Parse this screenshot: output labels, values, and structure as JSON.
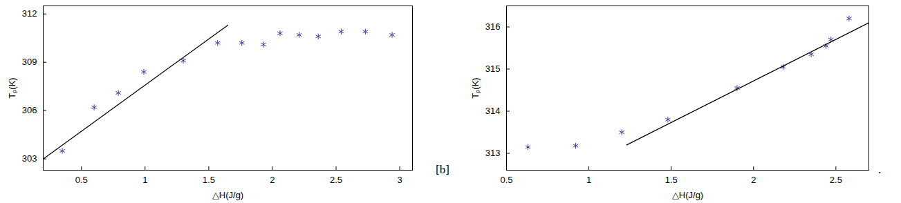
{
  "chart_data": [
    {
      "type": "scatter",
      "xlabel": "△H(J/g)",
      "ylabel": "Tₚ(K)",
      "xlim": [
        0.2,
        3.1
      ],
      "ylim": [
        302.3,
        312.5
      ],
      "xticks": [
        0.5,
        1,
        1.5,
        2,
        2.5,
        3
      ],
      "yticks": [
        303,
        306,
        309,
        312
      ],
      "grid": false,
      "series": [
        {
          "type": "scatter",
          "marker": "asterisk",
          "color": "#3a3aa8",
          "x": [
            0.35,
            0.6,
            0.79,
            0.99,
            1.3,
            1.57,
            1.76,
            1.93,
            2.06,
            2.21,
            2.36,
            2.54,
            2.73,
            2.94
          ],
          "values": [
            303.5,
            306.2,
            307.1,
            308.4,
            309.1,
            310.2,
            310.2,
            310.1,
            310.8,
            310.7,
            310.6,
            310.9,
            310.9,
            310.7
          ]
        },
        {
          "type": "line",
          "color": "#000000",
          "x": [
            0.2,
            1.65
          ],
          "values": [
            303.0,
            311.3
          ]
        }
      ]
    },
    {
      "type": "scatter",
      "xlabel": "△H(J/g)",
      "ylabel": "Tₚ(K)",
      "xlim": [
        0.5,
        2.7
      ],
      "ylim": [
        312.6,
        316.5
      ],
      "xticks": [
        0.5,
        1,
        1.5,
        2,
        2.5
      ],
      "yticks": [
        313,
        314,
        315,
        316
      ],
      "grid": false,
      "annotations": [
        "[b]",
        "."
      ],
      "series": [
        {
          "type": "scatter",
          "marker": "asterisk",
          "color": "#3a3aa8",
          "x": [
            0.63,
            0.92,
            1.2,
            1.48,
            1.9,
            2.18,
            2.35,
            2.44,
            2.47,
            2.58
          ],
          "values": [
            313.15,
            313.18,
            313.5,
            313.8,
            314.55,
            315.05,
            315.35,
            315.55,
            315.7,
            316.2
          ]
        },
        {
          "type": "line",
          "color": "#000000",
          "x": [
            1.23,
            2.7
          ],
          "values": [
            313.2,
            316.1
          ]
        }
      ]
    }
  ]
}
